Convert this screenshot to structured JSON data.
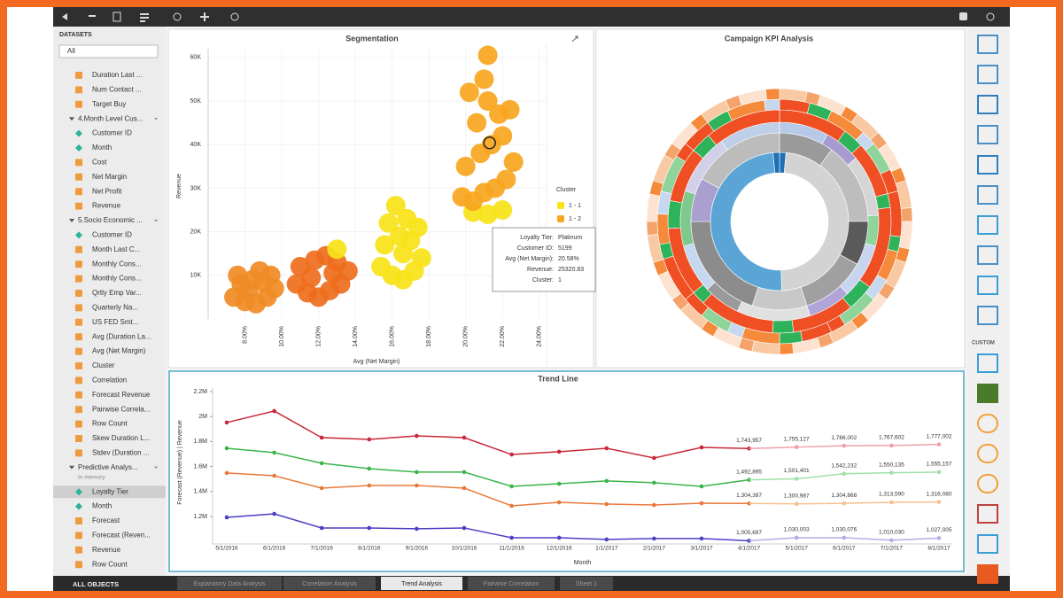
{
  "sidebar": {
    "header": "DATASETS",
    "filter": "All",
    "items": [
      {
        "label": "Duration Last ...",
        "kind": "measure"
      },
      {
        "label": "Num Contact ...",
        "kind": "measure"
      },
      {
        "label": "Target Buy",
        "kind": "measure"
      },
      {
        "label": "4.Month Level Cus...",
        "kind": "group"
      },
      {
        "label": "Customer ID",
        "kind": "dimension"
      },
      {
        "label": "Month",
        "kind": "dimension"
      },
      {
        "label": "Cost",
        "kind": "measure"
      },
      {
        "label": "Net Margin",
        "kind": "measure"
      },
      {
        "label": "Net Profit",
        "kind": "measure"
      },
      {
        "label": "Revenue",
        "kind": "measure"
      },
      {
        "label": "5.Socio Economic ...",
        "kind": "group"
      },
      {
        "label": "Customer ID",
        "kind": "dimension"
      },
      {
        "label": "Month Last C...",
        "kind": "measure"
      },
      {
        "label": "Monthly Cons...",
        "kind": "measure"
      },
      {
        "label": "Monthly Cons...",
        "kind": "measure"
      },
      {
        "label": "Qrtly Emp Var...",
        "kind": "measure"
      },
      {
        "label": "Quarterly Na...",
        "kind": "measure"
      },
      {
        "label": "US FED Smt...",
        "kind": "measure"
      },
      {
        "label": "Avg (Duration La...",
        "kind": "measure"
      },
      {
        "label": "Avg (Net Margin)",
        "kind": "measure"
      },
      {
        "label": "Cluster",
        "kind": "measure"
      },
      {
        "label": "Correlation",
        "kind": "measure"
      },
      {
        "label": "Forecast Revenue",
        "kind": "measure"
      },
      {
        "label": "Pairwise Correla...",
        "kind": "measure"
      },
      {
        "label": "Row Count",
        "kind": "measure"
      },
      {
        "label": "Skew Duration L...",
        "kind": "measure"
      },
      {
        "label": "Stdev (Duration ...",
        "kind": "measure"
      },
      {
        "label": "Predictive Analys...",
        "kind": "group",
        "note": "In memory"
      },
      {
        "label": "Loyalty Tier",
        "kind": "dimension",
        "selected": true
      },
      {
        "label": "Month",
        "kind": "dimension"
      },
      {
        "label": "Forecast",
        "kind": "measure"
      },
      {
        "label": "Forecast (Reven...",
        "kind": "measure"
      },
      {
        "label": "Revenue",
        "kind": "measure"
      },
      {
        "label": "Row Count",
        "kind": "measure"
      }
    ],
    "footer": "ALL OBJECTS"
  },
  "right_bar": {
    "custom_label": "CUSTOM"
  },
  "tabs": [
    {
      "label": "Explanatory Data Analysis"
    },
    {
      "label": "Correlation Analysis"
    },
    {
      "label": "Trend Analysis",
      "active": true
    },
    {
      "label": "Pairwise Correlation"
    },
    {
      "label": "Sheet 1"
    }
  ],
  "segmentation": {
    "type": "scatter",
    "title": "Segmentation",
    "x_label": "Avg (Net Margin)",
    "y_label": "Revenue",
    "xlim": [
      6,
      24.3
    ],
    "ylim": [
      0,
      62000
    ],
    "xticks": [
      {
        "value": 8,
        "label": "8.00%"
      },
      {
        "value": 10,
        "label": "10.00%"
      },
      {
        "value": 12,
        "label": "12.00%"
      },
      {
        "value": 14,
        "label": "14.00%"
      },
      {
        "value": 16,
        "label": "16.00%"
      },
      {
        "value": 18,
        "label": "18.00%"
      },
      {
        "value": 20,
        "label": "20.00%"
      },
      {
        "value": 22,
        "label": "22.00%"
      },
      {
        "value": 24,
        "label": "24.00%"
      }
    ],
    "yticks": [
      {
        "value": 10000,
        "label": "10K"
      },
      {
        "value": 20000,
        "label": "20K"
      },
      {
        "value": 30000,
        "label": "30K"
      },
      {
        "value": 40000,
        "label": "40K"
      },
      {
        "value": 50000,
        "label": "50K"
      },
      {
        "value": 60000,
        "label": "60K"
      }
    ],
    "legend_title": "Cluster",
    "series": [
      {
        "color": "#f08b25",
        "x": [
          7.4,
          8.0,
          8.6,
          9.2,
          9.6,
          7.8,
          8.4,
          9.0,
          7.6,
          8.8,
          9.4,
          8.2
        ],
        "values": [
          5000,
          4000,
          3500,
          5000,
          7000,
          8000,
          9000,
          8500,
          10000,
          11000,
          10000,
          6500
        ]
      },
      {
        "color": "#ee6e1c",
        "x": [
          10.8,
          11.4,
          12.0,
          12.6,
          13.2,
          13.6,
          11.0,
          11.8,
          12.4,
          13.0,
          11.6,
          12.8
        ],
        "values": [
          8000,
          6000,
          5000,
          6500,
          8000,
          11000,
          12000,
          13500,
          14500,
          13000,
          9500,
          10500
        ]
      },
      {
        "name": "1 - 1",
        "color": "#f7e318",
        "x": [
          15.4,
          16.0,
          16.6,
          17.2,
          17.6,
          15.6,
          16.4,
          17.0,
          15.8,
          16.8,
          16.2,
          17.4,
          16.6,
          20.4,
          21.2,
          22.0,
          13.0
        ],
        "values": [
          12000,
          10000,
          9000,
          11000,
          14000,
          17000,
          19000,
          18000,
          22000,
          23000,
          26000,
          21000,
          15000,
          24500,
          24000,
          25000,
          16000
        ]
      },
      {
        "name": "1 - 2",
        "color": "#f7a51e",
        "x": [
          19.8,
          20.4,
          21.0,
          21.6,
          22.2,
          22.6,
          20.0,
          20.8,
          21.4,
          22.0,
          20.6,
          21.8,
          21.2,
          20.2,
          22.4,
          21.0,
          21.2
        ],
        "values": [
          28000,
          27000,
          29000,
          30000,
          32000,
          36000,
          35000,
          38000,
          40000,
          42000,
          45000,
          47000,
          50000,
          52000,
          48000,
          55000,
          60500
        ]
      }
    ],
    "selected": {
      "x": 21.3,
      "value": 40400
    },
    "tooltip": {
      "rows": [
        [
          "Loyalty Tier:",
          "Platinum"
        ],
        [
          "Customer ID:",
          "5199"
        ],
        [
          "Avg (Net Margin):",
          "20.58%"
        ],
        [
          "Revenue:",
          "25320.83"
        ],
        [
          "Cluster:",
          "1"
        ]
      ]
    }
  },
  "kpi": {
    "type": "sunburst",
    "title": "Campaign KPI Analysis",
    "rings": [
      {
        "values": [
          1.5,
          48,
          49,
          1.5
        ],
        "colors": [
          "#1f6fb5",
          "#d3d3d3",
          "#5aa5d6",
          "#1f6fb5"
        ]
      },
      {
        "values": [
          10,
          15,
          8,
          12,
          10,
          20,
          8,
          17
        ],
        "colors": [
          "#9a9a9a",
          "#bdbdbd",
          "#5a5a5a",
          "#a0a0a0",
          "#c8c8c8",
          "#8c8c8c",
          "#a9a0d0",
          "#bcbcbc"
        ]
      },
      {
        "values": [
          8,
          6,
          10,
          5,
          9,
          7,
          12,
          6,
          8,
          9,
          10,
          10
        ],
        "colors": [
          "#b7c9e8",
          "#a89ad1",
          "#d5d5d5",
          "#8fd49a",
          "#c7d5ee",
          "#b0a4d8",
          "#e0e0e0",
          "#9a9a9a",
          "#c5d8f0",
          "#7fc98d",
          "#d2cfe9",
          "#bfcfe8"
        ]
      },
      {
        "values": [
          10,
          3,
          8,
          2,
          12,
          4,
          9,
          3,
          11,
          2,
          10,
          4,
          8,
          3,
          11
        ],
        "colors": [
          "#f04e23",
          "#2fb35a"
        ]
      },
      {
        "values": [
          4,
          3,
          5,
          2,
          4,
          3,
          6,
          2,
          4,
          3,
          5,
          2,
          4,
          3,
          5,
          2,
          4,
          3,
          6,
          2,
          4,
          3,
          5,
          2,
          4,
          3,
          5,
          2
        ],
        "colors": [
          "#f04e23",
          "#2fb35a",
          "#f58a3a",
          "#c5d8f0",
          "#8fd49a",
          "#f04e23"
        ]
      },
      {
        "values": [
          2,
          1,
          2,
          1,
          2,
          1,
          2,
          1,
          2,
          1,
          2,
          1,
          2,
          1,
          2,
          1,
          2,
          1,
          2,
          1,
          2,
          1,
          2,
          1,
          2,
          1,
          2,
          1,
          2,
          1,
          2,
          1,
          2,
          1,
          2,
          1,
          2,
          1,
          2,
          1
        ],
        "colors": [
          "#f8c9a3",
          "#f4a36b",
          "#fde3cf",
          "#f58a3a"
        ]
      }
    ]
  },
  "trend": {
    "type": "line",
    "title": "Trend Line",
    "x_label": "Month",
    "y_label": "Forecast (Revenue) | Revenue",
    "categories": [
      "5/1/2016",
      "6/1/2016",
      "7/1/2016",
      "8/1/2016",
      "9/1/2016",
      "10/1/2016",
      "11/1/2016",
      "12/1/2016",
      "1/1/2017",
      "2/1/2017",
      "3/1/2017",
      "4/1/2017",
      "5/1/2017",
      "6/1/2017",
      "7/1/2017",
      "8/1/2017"
    ],
    "ylim": [
      980000,
      2228000
    ],
    "yticks": [
      {
        "value": 1200000,
        "label": "1.2M"
      },
      {
        "value": 1400000,
        "label": "1.4M"
      },
      {
        "value": 1600000,
        "label": "1.6M"
      },
      {
        "value": 1800000,
        "label": "1.8M"
      },
      {
        "value": 2000000,
        "label": "2M"
      },
      {
        "value": 2200000,
        "label": "2.2M"
      }
    ],
    "series": [
      {
        "color": "#c8283a",
        "forecast_color": "#f0a0a8",
        "values": [
          1952000,
          2044000,
          1831000,
          1817000,
          1845000,
          1831000,
          1696000,
          1718000,
          1746000,
          1668000,
          1753000,
          1743957,
          null,
          null,
          null,
          null
        ],
        "value_labels": [
          null,
          null,
          null,
          null,
          null,
          null,
          null,
          null,
          null,
          null,
          null,
          "1,743,957",
          null,
          null,
          null,
          null
        ],
        "forecast": [
          null,
          null,
          null,
          null,
          null,
          null,
          null,
          null,
          null,
          null,
          null,
          null,
          1755127,
          1766002,
          1767602,
          1777002
        ],
        "forecast_labels": [
          null,
          null,
          null,
          null,
          null,
          null,
          null,
          null,
          null,
          null,
          null,
          null,
          "1,755,127",
          "1,766,002",
          "1,767,602",
          "1,777,002"
        ]
      },
      {
        "color": "#3cb44b",
        "forecast_color": "#9fe0a5",
        "values": [
          1746000,
          1711000,
          1626000,
          1583000,
          1555000,
          1555000,
          1441000,
          1462000,
          1484000,
          1470000,
          1441000,
          1492895,
          null,
          null,
          null,
          null
        ],
        "value_labels": [
          null,
          null,
          null,
          null,
          null,
          null,
          null,
          null,
          null,
          null,
          null,
          "1,492,895",
          null,
          null,
          null,
          null
        ],
        "forecast": [
          null,
          null,
          null,
          null,
          null,
          null,
          null,
          null,
          null,
          null,
          null,
          null,
          1501401,
          1542232,
          1550135,
          1555157
        ],
        "forecast_labels": [
          null,
          null,
          null,
          null,
          null,
          null,
          null,
          null,
          null,
          null,
          null,
          null,
          "1,501,401",
          "1,542,232",
          "1,550,135",
          "1,555,157"
        ]
      },
      {
        "color": "#e8793a",
        "forecast_color": "#f5c08f",
        "values": [
          1548000,
          1526000,
          1427000,
          1448000,
          1448000,
          1427000,
          1285000,
          1313000,
          1299000,
          1292000,
          1306000,
          1304397,
          null,
          null,
          null,
          null
        ],
        "value_labels": [
          null,
          null,
          null,
          null,
          null,
          null,
          null,
          null,
          null,
          null,
          null,
          "1,304,397",
          null,
          null,
          null,
          null
        ],
        "forecast": [
          null,
          null,
          null,
          null,
          null,
          null,
          null,
          null,
          null,
          null,
          null,
          null,
          1300987,
          1304868,
          1313590,
          1316080
        ],
        "forecast_labels": [
          null,
          null,
          null,
          null,
          null,
          null,
          null,
          null,
          null,
          null,
          null,
          null,
          "1,300,987",
          "1,304,868",
          "1,313,590",
          "1,316,080"
        ]
      },
      {
        "color": "#4b3fc4",
        "forecast_color": "#b0aee6",
        "values": [
          1193000,
          1221000,
          1108000,
          1108000,
          1101000,
          1108000,
          1030000,
          1030000,
          1016000,
          1023000,
          1023000,
          1005697,
          null,
          null,
          null,
          null
        ],
        "value_labels": [
          null,
          null,
          null,
          null,
          null,
          null,
          null,
          null,
          null,
          null,
          null,
          "1,005,697",
          null,
          null,
          null,
          null
        ],
        "forecast": [
          null,
          null,
          null,
          null,
          null,
          null,
          null,
          null,
          null,
          null,
          null,
          null,
          1030003,
          1030076,
          1010030,
          1027005
        ],
        "forecast_labels": [
          null,
          null,
          null,
          null,
          null,
          null,
          null,
          null,
          null,
          null,
          null,
          null,
          "1,030,003",
          "1,030,076",
          "1,010,030",
          "1,027,005"
        ]
      }
    ]
  }
}
